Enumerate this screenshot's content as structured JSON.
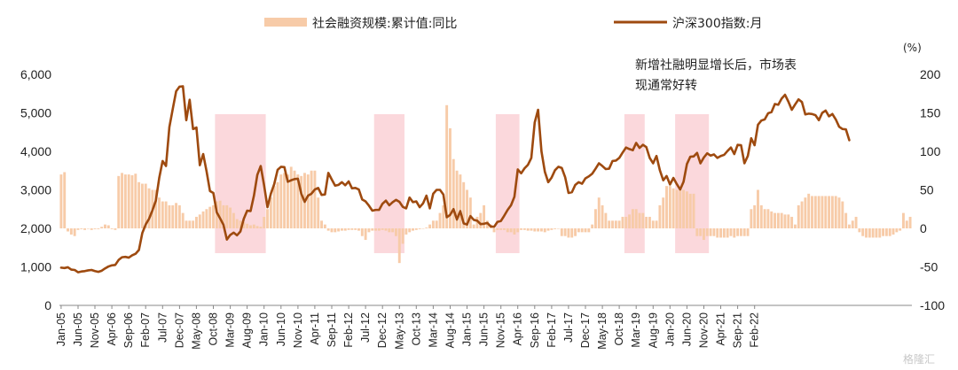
{
  "chart_data": {
    "type": "bar+line",
    "legend": {
      "bar_label": "社会融资规模:累计值:同比",
      "line_label": "沪深300指数:月",
      "placement": "top"
    },
    "annotation": {
      "line1": "新增社融明显增长后，市场表",
      "line2": "现通常好转"
    },
    "right_unit": "(%)",
    "watermark": "格隆汇",
    "left_axis": {
      "range": [
        0,
        6000
      ],
      "ticks": [
        "0",
        "1,000",
        "2,000",
        "3,000",
        "4,000",
        "5,000",
        "6,000"
      ]
    },
    "right_axis": {
      "range": [
        -100,
        200
      ],
      "ticks": [
        "-100",
        "-50",
        "0",
        "50",
        "100",
        "150",
        "200"
      ]
    },
    "x_ticks": [
      "Jan-05",
      "Jun-05",
      "Nov-05",
      "Apr-06",
      "Sep-06",
      "Feb-07",
      "Jul-07",
      "Dec-07",
      "May-08",
      "Oct-08",
      "Mar-09",
      "Aug-09",
      "Jan-10",
      "Jun-10",
      "Nov-10",
      "Apr-11",
      "Sep-11",
      "Feb-12",
      "Jul-12",
      "Dec-12",
      "May-13",
      "Oct-13",
      "Mar-14",
      "Aug-14",
      "Jan-15",
      "Jun-15",
      "Nov-15",
      "Apr-16",
      "Sep-16",
      "Feb-17",
      "Jul-17",
      "Dec-17",
      "May-18",
      "Oct-18",
      "Mar-19",
      "Aug-19",
      "Jan-20",
      "Jun-20",
      "Nov-20",
      "Apr-21",
      "Sep-21",
      "Feb-22"
    ],
    "highlight_periods": [
      {
        "start": "2008-11",
        "end": "2010-01"
      },
      {
        "start": "2012-10",
        "end": "2013-06"
      },
      {
        "start": "2015-10",
        "end": "2016-04"
      },
      {
        "start": "2018-12",
        "end": "2019-05"
      },
      {
        "start": "2020-03",
        "end": "2020-12"
      }
    ],
    "bar_series": {
      "name": "社会融资规模:累计值:同比",
      "color": "#f7cba8",
      "start": "2005-01",
      "values": [
        70,
        73,
        -4,
        -8,
        -10,
        -2,
        -1,
        -2,
        0,
        -2,
        -1,
        -1,
        2,
        5,
        4,
        -1,
        -2,
        68,
        72,
        70,
        70,
        69,
        71,
        60,
        58,
        58,
        52,
        50,
        50,
        40,
        35,
        35,
        30,
        30,
        33,
        30,
        20,
        10,
        10,
        10,
        15,
        18,
        22,
        25,
        28,
        30,
        35,
        36,
        30,
        30,
        27,
        20,
        12,
        10,
        8,
        6,
        4,
        5,
        3,
        2,
        15,
        25,
        40,
        55,
        60,
        70,
        72,
        70,
        80,
        75,
        70,
        68,
        72,
        70,
        75,
        75,
        40,
        10,
        5,
        -3,
        -5,
        -5,
        -4,
        -3,
        -3,
        -2,
        -2,
        -2,
        -3,
        -10,
        -15,
        -5,
        -3,
        -3,
        -3,
        -2,
        -3,
        -5,
        -5,
        -10,
        -45,
        -20,
        -8,
        -5,
        -3,
        -2,
        -1,
        0,
        1,
        5,
        10,
        10,
        20,
        30,
        160,
        130,
        90,
        75,
        70,
        60,
        50,
        40,
        5,
        15,
        20,
        30,
        10,
        5,
        -5,
        -2,
        -2,
        -2,
        -5,
        -5,
        -8,
        -5,
        -2,
        -2,
        -3,
        -3,
        -4,
        -4,
        -4,
        -5,
        -3,
        -2,
        -1,
        0,
        -10,
        -10,
        -12,
        -12,
        -10,
        -5,
        -5,
        -5,
        -5,
        5,
        25,
        40,
        30,
        20,
        10,
        10,
        10,
        10,
        15,
        15,
        18,
        25,
        25,
        20,
        20,
        15,
        15,
        10,
        10,
        30,
        40,
        55,
        55,
        52,
        50,
        50,
        50,
        48,
        45,
        45,
        -10,
        -10,
        -15,
        -10,
        -10,
        -10,
        -12,
        -12,
        -12,
        -12,
        -10,
        -12,
        -10,
        -10,
        -10,
        -10,
        25,
        30,
        50,
        30,
        25,
        25,
        22,
        20,
        20,
        20,
        18,
        18,
        15,
        5,
        30,
        35,
        40,
        45,
        42,
        42,
        42,
        42,
        42,
        42,
        42,
        42,
        40,
        35,
        20,
        5,
        10,
        15,
        -5,
        -10,
        -12,
        -12,
        -12,
        -12,
        -12,
        -10,
        -10,
        -10,
        -8,
        -5,
        -3,
        20,
        10,
        15
      ]
    },
    "line_series": {
      "name": "沪深300指数:月",
      "color": "#9e4a0f",
      "start": "2005-01",
      "values": [
        980,
        970,
        990,
        930,
        920,
        860,
        880,
        890,
        910,
        920,
        890,
        870,
        900,
        960,
        1010,
        1040,
        1050,
        1180,
        1250,
        1260,
        1240,
        1300,
        1340,
        1440,
        1880,
        2100,
        2250,
        2470,
        2720,
        3310,
        3750,
        3620,
        4630,
        5100,
        5560,
        5680,
        5690,
        4810,
        5340,
        4580,
        4620,
        3640,
        3930,
        3480,
        2970,
        2920,
        2420,
        2260,
        2090,
        1710,
        1830,
        1890,
        1820,
        1920,
        2250,
        2460,
        2450,
        2850,
        3390,
        3620,
        3120,
        2550,
        2900,
        3150,
        3520,
        3600,
        3590,
        3210,
        3250,
        3280,
        3290,
        2900,
        2690,
        2850,
        2900,
        3010,
        3050,
        2870,
        2880,
        3440,
        3270,
        3110,
        3130,
        3200,
        3120,
        3220,
        3040,
        3050,
        3010,
        2750,
        2700,
        2590,
        2460,
        2480,
        2480,
        2640,
        2720,
        2600,
        2680,
        2740,
        2690,
        2560,
        2520,
        2800,
        2680,
        2700,
        2550,
        2650,
        2850,
        2520,
        2900,
        3000,
        3000,
        2880,
        2290,
        2350,
        2500,
        2230,
        2450,
        2130,
        2100,
        2320,
        2220,
        2200,
        2110,
        2120,
        2140,
        2050,
        2040,
        2170,
        2190,
        2330,
        2480,
        2600,
        2820,
        3530,
        3430,
        3560,
        3650,
        3830,
        4750,
        5080,
        4000,
        3470,
        3200,
        3320,
        3510,
        3600,
        3570,
        3330,
        2920,
        2940,
        3130,
        3200,
        3160,
        3300,
        3350,
        3420,
        3550,
        3690,
        3620,
        3540,
        3550,
        3750,
        3760,
        3830,
        3970,
        4100,
        4060,
        4030,
        4220,
        4090,
        4170,
        4110,
        3830,
        3690,
        3880,
        3510,
        3250,
        3360,
        3140,
        3310,
        3150,
        3010,
        3210,
        3670,
        3860,
        3870,
        3960,
        3690,
        3840,
        3950,
        3890,
        3920,
        3830,
        3880,
        3910,
        4010,
        4100,
        3930,
        4170,
        4160,
        3690,
        3880,
        4340,
        4160,
        4690,
        4800,
        4830,
        4990,
        5020,
        5230,
        5210,
        5370,
        5470,
        5290,
        5080,
        5220,
        5350,
        5280,
        4960,
        4980,
        4970,
        4940,
        4810,
        5000,
        5060,
        4910,
        4970,
        4830,
        4640,
        4580,
        4570,
        4290
      ]
    }
  }
}
